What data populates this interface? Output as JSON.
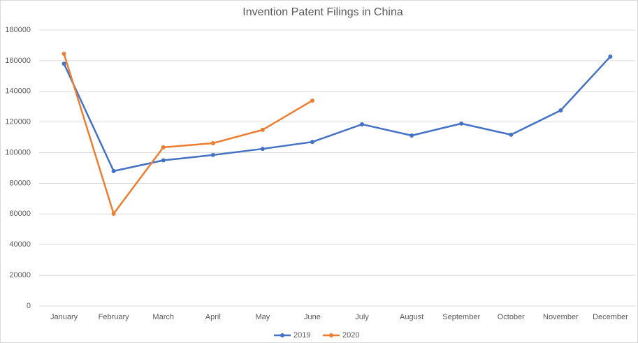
{
  "chart_data": {
    "type": "line",
    "title": "Invention Patent Filings in China",
    "categories": [
      "January",
      "February",
      "March",
      "April",
      "May",
      "June",
      "July",
      "August",
      "September",
      "October",
      "November",
      "December"
    ],
    "series": [
      {
        "name": "2019",
        "color": "#4472c4",
        "values": [
          158000,
          88000,
          95000,
          98500,
          102500,
          107000,
          118500,
          111200,
          119000,
          111700,
          127600,
          162700
        ]
      },
      {
        "name": "2020",
        "color": "#ed7d31",
        "values": [
          164500,
          60200,
          103500,
          106200,
          114900,
          134000,
          null,
          null,
          null,
          null,
          null,
          null
        ]
      }
    ],
    "ylim": [
      0,
      180000
    ],
    "yticks": [
      0,
      20000,
      40000,
      60000,
      80000,
      100000,
      120000,
      140000,
      160000,
      180000
    ],
    "grid": true,
    "legend": "bottom"
  }
}
